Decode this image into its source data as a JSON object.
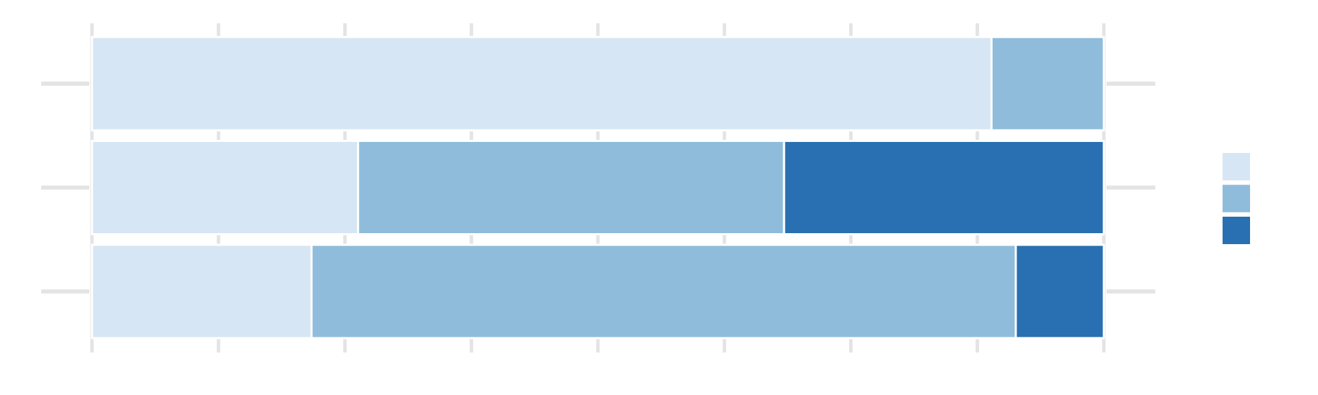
{
  "chart_data": {
    "type": "bar",
    "orientation": "horizontal",
    "stacked": true,
    "normalized": true,
    "title": "",
    "xlabel": "",
    "ylabel": "",
    "categories": [
      "",
      "",
      ""
    ],
    "xlim": [
      0,
      1
    ],
    "xticks": [
      0,
      0.125,
      0.25,
      0.375,
      0.5,
      0.625,
      0.75,
      0.875,
      1
    ],
    "grid": true,
    "legend_position": "right",
    "series": [
      {
        "values": [
          0.889,
          0.263,
          0.217
        ],
        "color": "#d6e6f4"
      },
      {
        "values": [
          0.111,
          0.421,
          0.696
        ],
        "color": "#8fbcdb"
      },
      {
        "values": [
          0.0,
          0.316,
          0.087
        ],
        "color": "#2870b1"
      }
    ]
  }
}
